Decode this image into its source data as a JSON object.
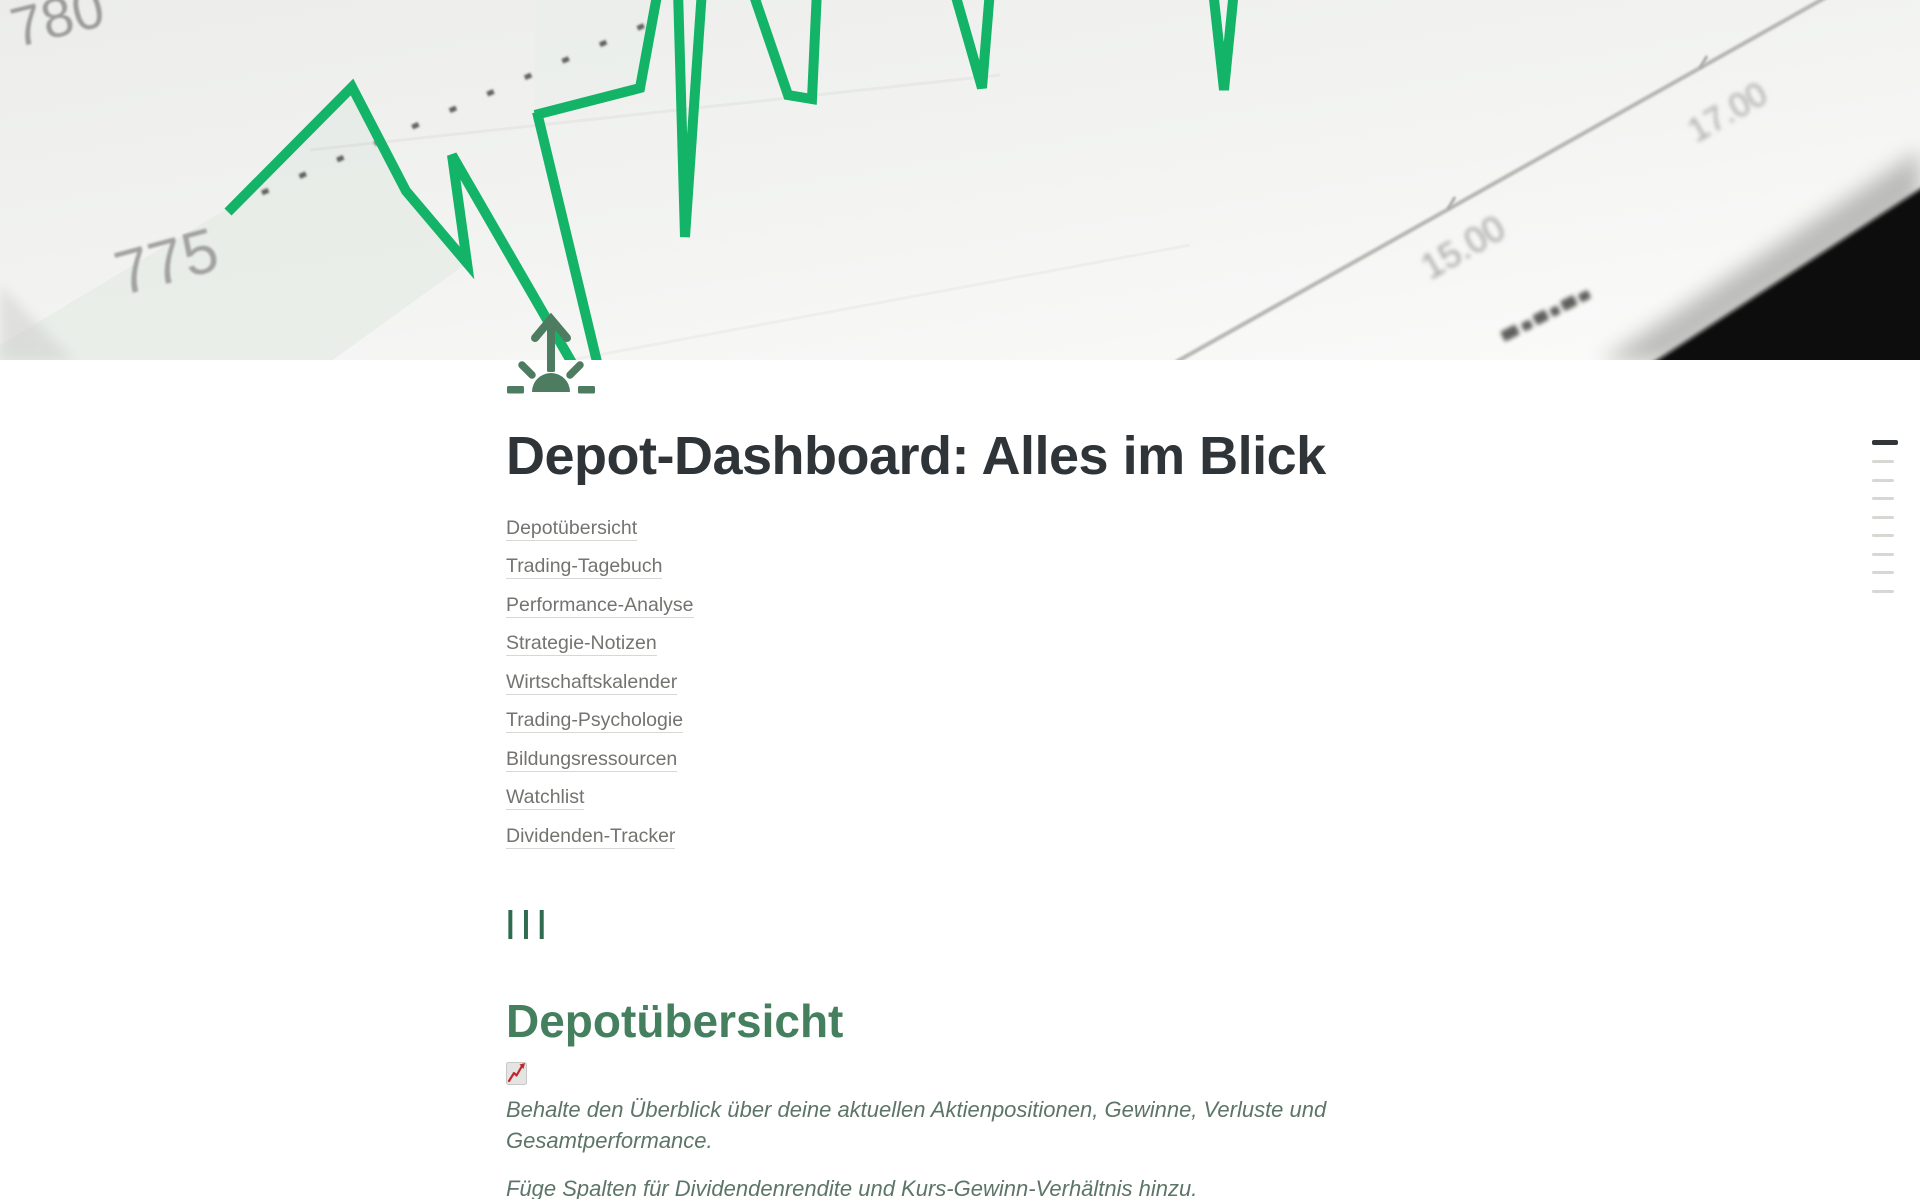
{
  "page": {
    "title": "Depot-Dashboard: Alles im Blick",
    "icon_name": "sunrise-arrow-icon"
  },
  "nav_links": [
    "Depotübersicht",
    "Trading-Tagebuch",
    "Performance-Analyse",
    "Strategie-Notizen",
    "Wirtschaftskalender",
    "Trading-Psychologie",
    "Bildungsressourcen",
    "Watchlist",
    "Dividenden-Tracker"
  ],
  "divider_text": "|||",
  "section": {
    "heading": "Depotübersicht",
    "emoji_name": "chart-increasing-emoji",
    "paragraphs": [
      "Behalte den Überblick über deine aktuellen Aktienpositionen, Gewinne, Verluste und Gesamtperformance.",
      "Füge Spalten für Dividendenrendite und Kurs-Gewinn-Verhältnis hinzu."
    ]
  },
  "cover_chart": {
    "type": "line",
    "description": "tilted photo of a rising green stock chart on a screen, dark screen bezel in lower right corner",
    "y_axis_labels": [
      "780",
      "775"
    ],
    "x_axis_labels": [
      "15.00",
      "17.00"
    ],
    "colors": {
      "chart_line_green": "#14b468",
      "icon_green": "#4d7c60",
      "heading_green": "#447f5e",
      "photo_background": "#f1f2f0",
      "axis_gray": "#b6b6b4",
      "bezel_black": "#070707"
    }
  },
  "toc_rail": {
    "lines": 9,
    "active_index": 0
  }
}
